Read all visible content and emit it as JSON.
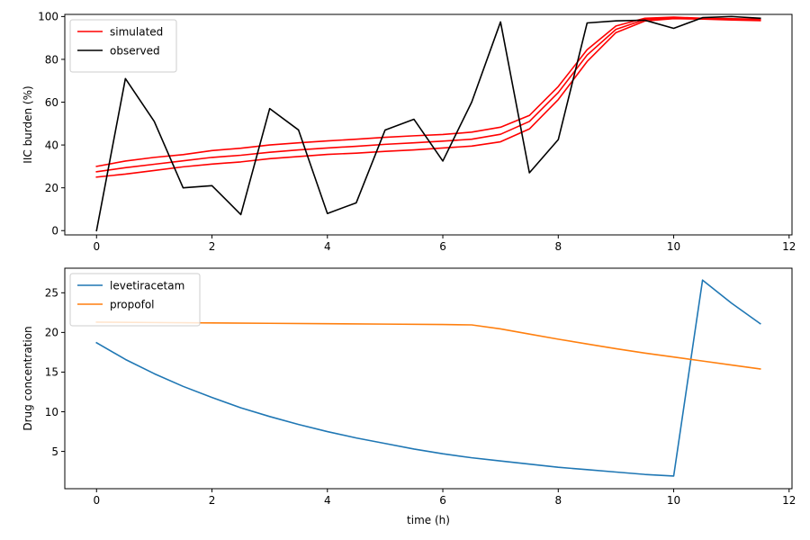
{
  "chart_data": [
    {
      "type": "line",
      "xlabel": "",
      "ylabel": "IIC burden (%)",
      "xlim": [
        -0.55,
        12.05
      ],
      "ylim": [
        -2,
        101
      ],
      "xticks": [
        0,
        2,
        4,
        6,
        8,
        10,
        12
      ],
      "yticks": [
        0,
        20,
        40,
        60,
        80,
        100
      ],
      "grid": false,
      "legend": "top-left",
      "legend_entries": [
        {
          "name": "simulated",
          "color": "#ff0000"
        },
        {
          "name": "observed",
          "color": "#000000"
        }
      ],
      "series": [
        {
          "color": "#ff0000",
          "x": [
            0,
            0.5,
            1,
            1.5,
            2,
            2.5,
            3,
            3.5,
            4,
            4.5,
            5,
            5.5,
            6,
            6.5,
            7,
            7.5,
            8,
            8.5,
            9,
            9.5,
            10,
            10.5,
            11,
            11.5
          ],
          "y": [
            30,
            32.5,
            34.2,
            35.5,
            37.4,
            38.5,
            40,
            41,
            41.9,
            42.7,
            43.6,
            44.3,
            44.9,
            46,
            48.3,
            53.8,
            67.3,
            84.5,
            95.6,
            99.2,
            99.7,
            99.2,
            99,
            98.8
          ]
        },
        {
          "color": "#ff0000",
          "x": [
            0,
            0.5,
            1,
            1.5,
            2,
            2.5,
            3,
            3.5,
            4,
            4.5,
            5,
            5.5,
            6,
            6.5,
            7,
            7.5,
            8,
            8.5,
            9,
            9.5,
            10,
            10.5,
            11,
            11.5
          ],
          "y": [
            27.5,
            29.4,
            31,
            32.6,
            34.2,
            35.2,
            36.6,
            37.7,
            38.6,
            39.4,
            40.3,
            41,
            41.8,
            42.7,
            45,
            51,
            64.5,
            82,
            94,
            98.6,
            99.3,
            99,
            98.7,
            98.5
          ]
        },
        {
          "color": "#ff0000",
          "x": [
            0,
            0.5,
            1,
            1.5,
            2,
            2.5,
            3,
            3.5,
            4,
            4.5,
            5,
            5.5,
            6,
            6.5,
            7,
            7.5,
            8,
            8.5,
            9,
            9.5,
            10,
            10.5,
            11,
            11.5
          ],
          "y": [
            25,
            26.4,
            28.1,
            29.8,
            31.1,
            32.1,
            33.6,
            34.6,
            35.6,
            36.2,
            37,
            37.7,
            38.6,
            39.5,
            41.5,
            47.5,
            61.2,
            79,
            92.5,
            97.9,
            99,
            98.8,
            98.4,
            98.1
          ]
        },
        {
          "color": "#000000",
          "x": [
            0,
            0.5,
            1,
            1.5,
            2,
            2.5,
            3,
            3.5,
            4,
            4.5,
            5,
            5.5,
            6,
            6.5,
            7,
            7.5,
            8,
            8.5,
            9,
            9.5,
            10,
            10.5,
            11,
            11.5
          ],
          "y": [
            0,
            71,
            51,
            20,
            21,
            7.5,
            57,
            47,
            8,
            13,
            47,
            52,
            32.5,
            60,
            97.5,
            27,
            42.5,
            97,
            98,
            98.3,
            94.5,
            99.5,
            100,
            99.2
          ]
        }
      ]
    },
    {
      "type": "line",
      "xlabel": "time (h)",
      "ylabel": "Drug concentration",
      "xlim": [
        -0.55,
        12.05
      ],
      "ylim": [
        0.3,
        28.1
      ],
      "xticks": [
        0,
        2,
        4,
        6,
        8,
        10,
        12
      ],
      "yticks": [
        5,
        10,
        15,
        20,
        25
      ],
      "grid": false,
      "legend": "top-left",
      "series": [
        {
          "name": "levetiracetam",
          "color": "#1f77b4",
          "x": [
            0,
            0.5,
            1,
            1.5,
            2,
            2.5,
            3,
            3.5,
            4,
            4.5,
            5,
            5.5,
            6,
            6.5,
            7,
            7.5,
            8,
            8.5,
            9,
            9.5,
            10,
            10.5,
            11,
            11.5
          ],
          "y": [
            18.7,
            16.6,
            14.8,
            13.2,
            11.8,
            10.5,
            9.4,
            8.4,
            7.5,
            6.7,
            6,
            5.3,
            4.7,
            4.2,
            3.8,
            3.4,
            3,
            2.7,
            2.4,
            2.1,
            1.9,
            26.6,
            23.7,
            21.1
          ]
        },
        {
          "name": "propofol",
          "color": "#ff7f0e",
          "x": [
            0,
            1,
            2,
            3,
            4,
            5,
            6,
            6.5,
            7,
            7.5,
            8,
            8.5,
            9,
            9.5,
            10,
            10.5,
            11,
            11.5
          ],
          "y": [
            21.3,
            21.25,
            21.2,
            21.15,
            21.1,
            21.05,
            21,
            20.95,
            20.45,
            19.8,
            19.15,
            18.55,
            17.95,
            17.4,
            16.9,
            16.4,
            15.9,
            15.4
          ]
        }
      ]
    }
  ]
}
